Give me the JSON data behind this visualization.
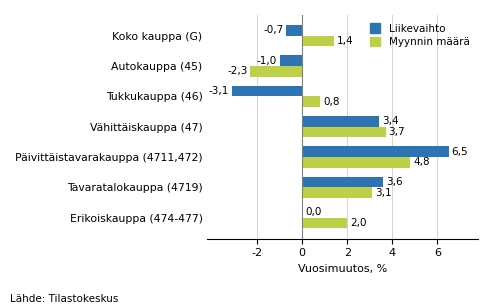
{
  "categories": [
    "Koko kauppa (G)",
    "Autokauppa (45)",
    "Tukkukauppa (46)",
    "Vähittäiskauppa (47)",
    "Päivittäistavarakauppa (4711,472)",
    "Tavaratalokauppa (4719)",
    "Erikoiskauppa (474-477)"
  ],
  "liikevaihto": [
    -0.7,
    -1.0,
    -3.1,
    3.4,
    6.5,
    3.6,
    0.0
  ],
  "myynnin_maara": [
    1.4,
    -2.3,
    0.8,
    3.7,
    4.8,
    3.1,
    2.0
  ],
  "color_liikevaihto": "#2E74B5",
  "color_myynnin_maara": "#BDD047",
  "xlabel": "Vuosimuutos, %",
  "legend_liikevaihto": "Liikevaihto",
  "legend_myynnin_maara": "Myynnin määrä",
  "source": "Lähde: Tilastokeskus",
  "xlim": [
    -4.2,
    7.8
  ],
  "xticks": [
    -2,
    0,
    2,
    4,
    6
  ],
  "bar_height": 0.35
}
